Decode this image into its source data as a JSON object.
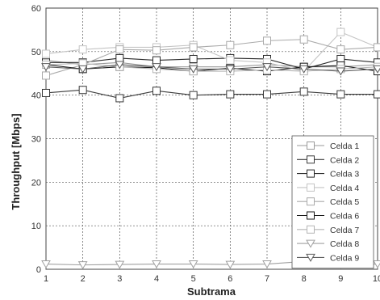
{
  "chart_data": {
    "type": "line",
    "title": "",
    "xlabel": "Subtrama",
    "ylabel": "Throughput [Mbps]",
    "x": [
      1,
      2,
      3,
      4,
      5,
      6,
      7,
      8,
      9,
      10
    ],
    "xlim": [
      1,
      10
    ],
    "ylim": [
      0,
      60
    ],
    "xticks": [
      "1",
      "2",
      "3",
      "4",
      "5",
      "6",
      "7",
      "8",
      "9",
      "10"
    ],
    "yticks": [
      "0",
      "10",
      "20",
      "30",
      "40",
      "50",
      "60"
    ],
    "grid": true,
    "legend_position": "right",
    "series": [
      {
        "name": "Celda 1",
        "color": "#9a9a9a",
        "marker": "square",
        "values": [
          48,
          47,
          47.5,
          46.5,
          46.5,
          46.5,
          47,
          46.5,
          46.5,
          47
        ]
      },
      {
        "name": "Celda 2",
        "color": "#3a3a3a",
        "marker": "square",
        "values": [
          40.5,
          41.2,
          39.3,
          41,
          40,
          40.2,
          40.2,
          40.8,
          40.2,
          40.2
        ]
      },
      {
        "name": "Celda 3",
        "color": "#2a2a2a",
        "marker": "square",
        "values": [
          47.5,
          47.5,
          48.5,
          48,
          48.3,
          48.5,
          48.3,
          46,
          48.3,
          47.5
        ]
      },
      {
        "name": "Celda 4",
        "color": "#c4c4c4",
        "marker": "square",
        "values": [
          49.5,
          50.5,
          51,
          51,
          51.5,
          48,
          47.5,
          45.5,
          54.5,
          51
        ]
      },
      {
        "name": "Celda 5",
        "color": "#aaaaaa",
        "marker": "square",
        "values": [
          44.5,
          47,
          50.5,
          50.3,
          51,
          51.5,
          52.5,
          52.8,
          50.5,
          51
        ]
      },
      {
        "name": "Celda 6",
        "color": "#1a1a1a",
        "marker": "square",
        "values": [
          47,
          46,
          46.5,
          46.3,
          45.5,
          46.2,
          45.5,
          46.5,
          46.8,
          45.5
        ]
      },
      {
        "name": "Celda 7",
        "color": "#b5b5b5",
        "marker": "square",
        "values": [
          47,
          47.3,
          46.5,
          46,
          45.5,
          45.5,
          45.8,
          45.5,
          46,
          46.5
        ]
      },
      {
        "name": "Celda 8",
        "color": "#a0a0a0",
        "marker": "triangle-down",
        "values": [
          1.2,
          1,
          1.1,
          1.2,
          1.2,
          1.1,
          1.2,
          1.8,
          1.1,
          1.2
        ]
      },
      {
        "name": "Celda 9",
        "color": "#5a5a5a",
        "marker": "triangle-down",
        "values": [
          46.5,
          46,
          47,
          46.5,
          46,
          46,
          46.5,
          46,
          45.5,
          46
        ]
      }
    ]
  }
}
